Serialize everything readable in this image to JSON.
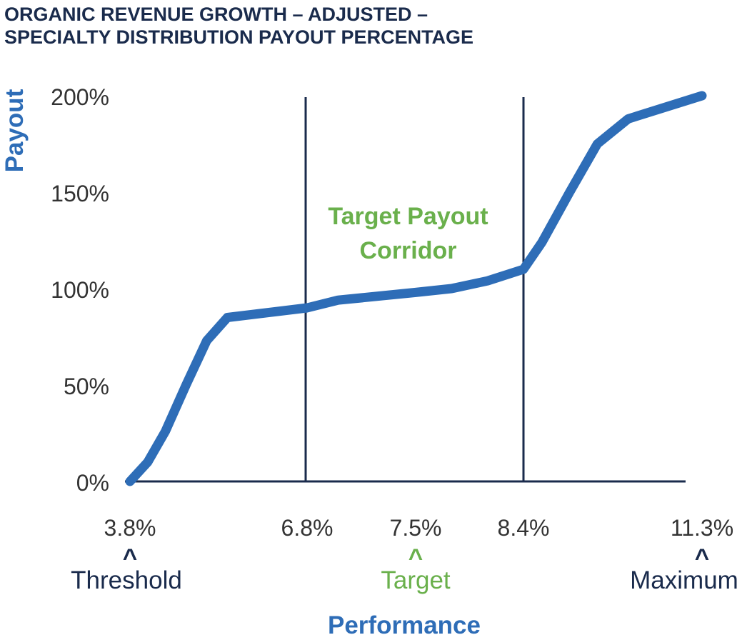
{
  "colors": {
    "title": "#1a2b4c",
    "line": "#2e6db7",
    "axis": "#1a2b4c",
    "green": "#6ab04c",
    "navy": "#1a2b4c",
    "tick": "#333333"
  },
  "chart_data": {
    "type": "line",
    "title_lines": [
      "ORGANIC REVENUE GROWTH – ADJUSTED –",
      "SPECIALTY DISTRIBUTION PAYOUT PERCENTAGE"
    ],
    "xlabel": "Performance",
    "ylabel": "Payout",
    "ylim": [
      0,
      200
    ],
    "yticks": [
      {
        "value": 0,
        "label": "0%"
      },
      {
        "value": 50,
        "label": "50%"
      },
      {
        "value": 100,
        "label": "100%"
      },
      {
        "value": 150,
        "label": "150%"
      },
      {
        "value": 200,
        "label": "200%"
      }
    ],
    "x_markers": [
      {
        "label": "3.8%"
      },
      {
        "label": "6.8%"
      },
      {
        "label": "7.5%"
      },
      {
        "label": "8.4%"
      },
      {
        "label": "11.3%"
      }
    ],
    "milestones": [
      {
        "name": "Threshold",
        "marker": 0,
        "color": "#1a2b4c"
      },
      {
        "name": "Target",
        "marker": 2,
        "color": "#6ab04c"
      },
      {
        "name": "Maximum",
        "marker": 4,
        "color": "#1a2b4c"
      }
    ],
    "milestone_caret": "^",
    "corridor": {
      "from_marker": 1,
      "to_marker": 3,
      "label_lines": [
        "Target Payout",
        "Corridor"
      ]
    },
    "grid": false,
    "series": [
      {
        "x": [
          3.8,
          4.1,
          4.4,
          4.75,
          5.1,
          5.45,
          6.8,
          7.0,
          7.5,
          7.8,
          8.1,
          8.4,
          8.7,
          9.15,
          9.6,
          10.1,
          11.3
        ],
        "values": [
          0,
          10,
          26,
          50,
          73,
          85,
          90,
          94,
          98,
          100,
          104,
          110,
          124,
          150,
          175,
          188,
          200
        ]
      }
    ]
  }
}
